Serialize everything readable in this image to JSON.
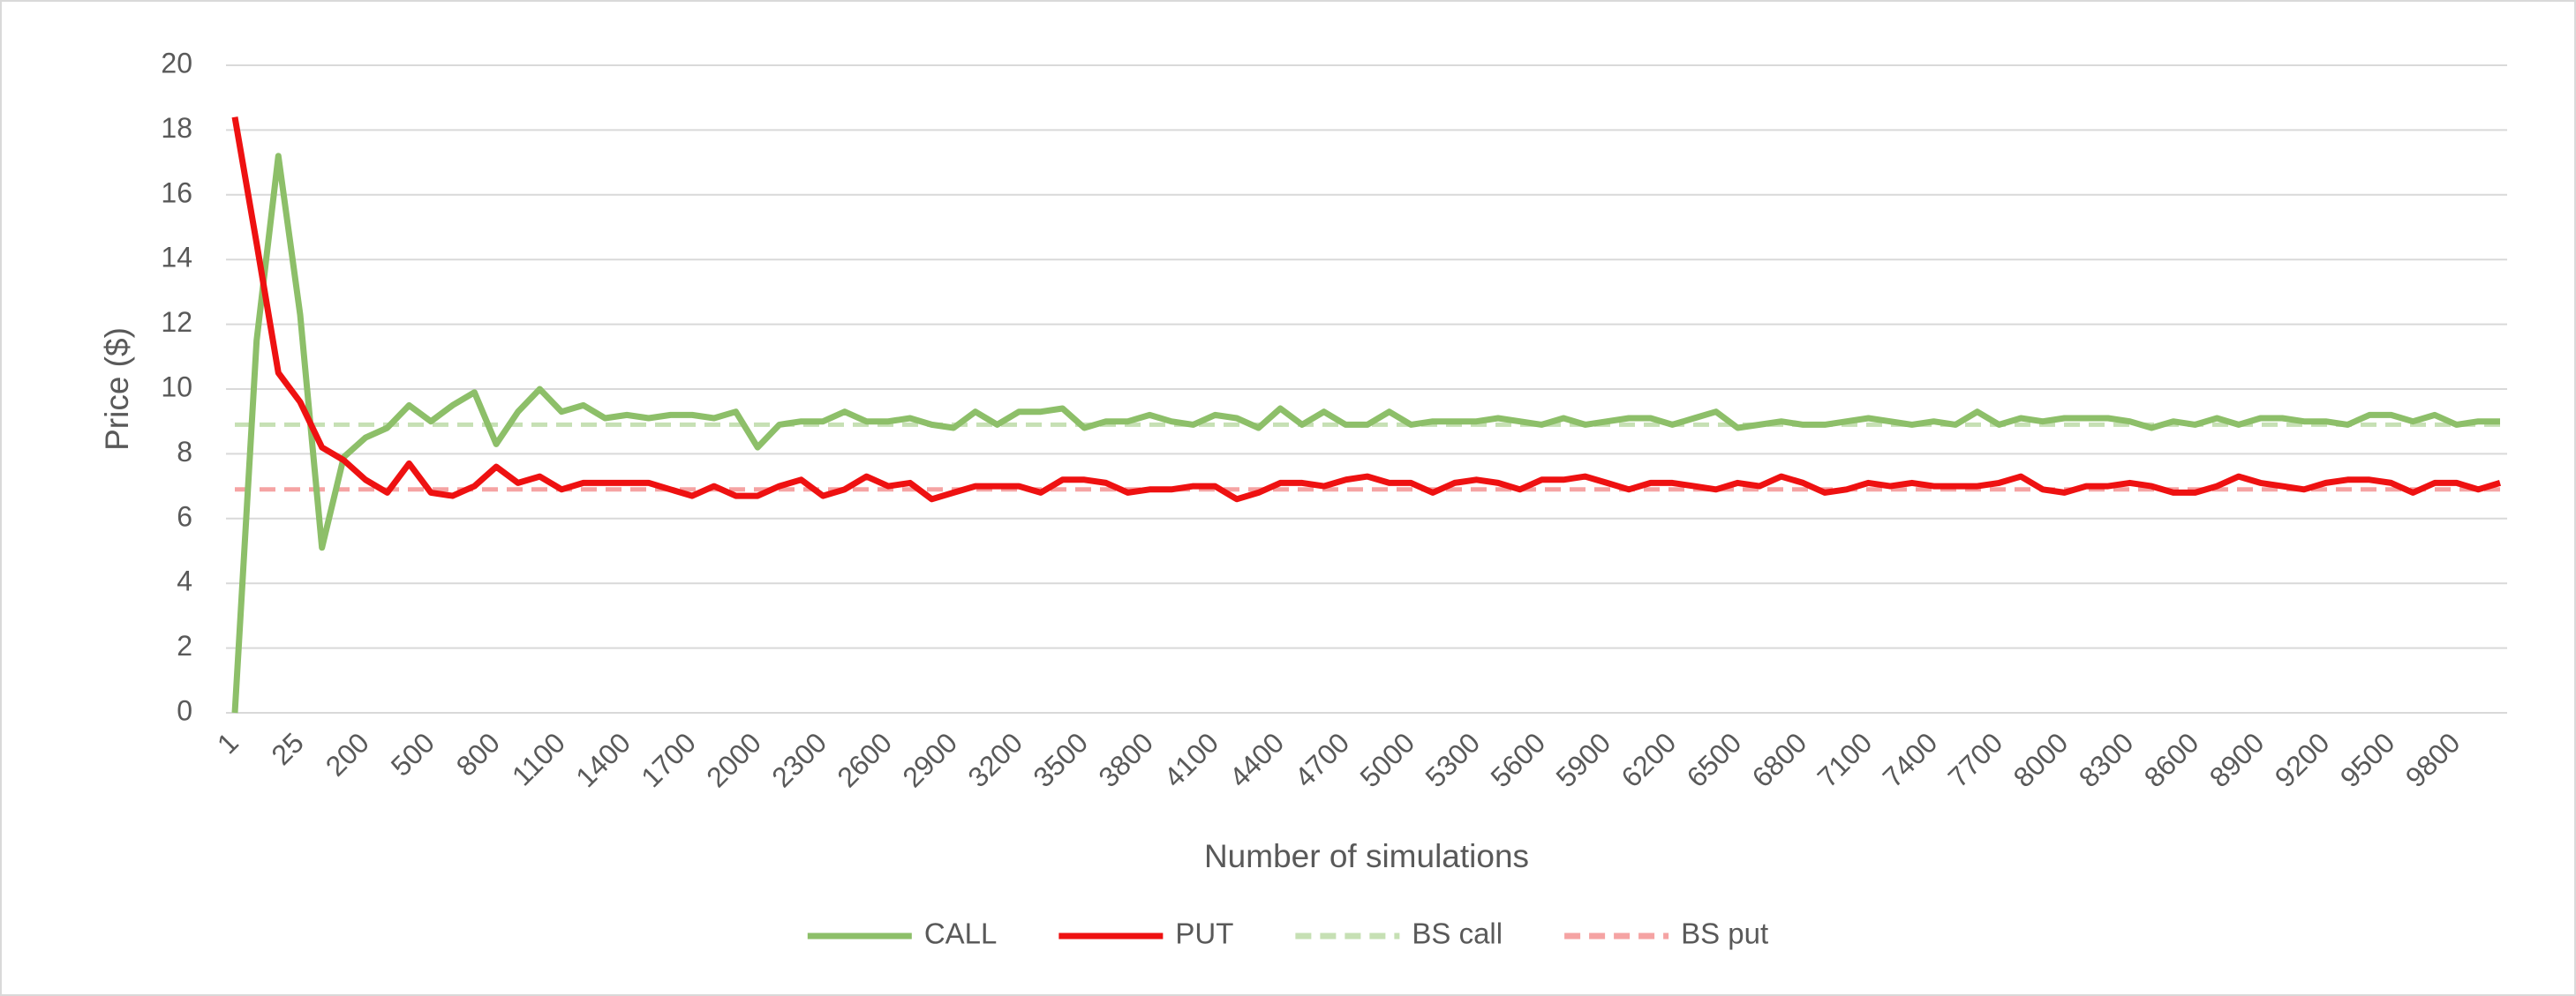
{
  "chart_data": {
    "type": "line",
    "xlabel": "Number of simulations",
    "ylabel": "Price ($)",
    "categories": [
      1,
      null,
      null,
      25,
      null,
      null,
      200,
      null,
      null,
      500,
      null,
      null,
      800,
      null,
      null,
      1100,
      null,
      null,
      1400,
      null,
      null,
      1700,
      null,
      null,
      2000,
      null,
      null,
      2300,
      null,
      null,
      2600,
      null,
      null,
      2900,
      null,
      null,
      3200,
      null,
      null,
      3500,
      null,
      null,
      3800,
      null,
      null,
      4100,
      null,
      null,
      4400,
      null,
      null,
      4700,
      null,
      null,
      5000,
      null,
      null,
      5300,
      null,
      null,
      5600,
      null,
      null,
      5900,
      null,
      null,
      6200,
      null,
      null,
      6500,
      null,
      null,
      6800,
      null,
      null,
      7100,
      null,
      null,
      7400,
      null,
      null,
      7700,
      null,
      null,
      8000,
      null,
      null,
      8300,
      null,
      null,
      8600,
      null,
      null,
      8900,
      null,
      null,
      9200,
      null,
      null,
      9500,
      null,
      null,
      9800,
      null,
      null
    ],
    "series": [
      {
        "name": "CALL",
        "color": "#8dbf69",
        "dashed": false,
        "values": [
          0,
          11.5,
          17.2,
          12.3,
          5.1,
          7.9,
          8.5,
          8.8,
          9.5,
          9.0,
          9.5,
          9.9,
          8.3,
          9.3,
          10.0,
          9.3,
          9.5,
          9.1,
          9.2,
          9.1,
          9.2,
          9.2,
          9.1,
          9.3,
          8.2,
          8.9,
          9.0,
          9.0,
          9.3,
          9.0,
          9.0,
          9.1,
          8.9,
          8.8,
          9.3,
          8.9,
          9.3,
          9.3,
          9.4,
          8.8,
          9.0,
          9.0,
          9.2,
          9.0,
          8.9,
          9.2,
          9.1,
          8.8,
          9.4,
          8.9,
          9.3,
          8.9,
          8.9,
          9.3,
          8.9,
          9.0,
          9.0,
          9.0,
          9.1,
          9.0,
          8.9,
          9.1,
          8.9,
          9.0,
          9.1,
          9.1,
          8.9,
          9.1,
          9.3,
          8.8,
          8.9,
          9.0,
          8.9,
          8.9,
          9.0,
          9.1,
          9.0,
          8.9,
          9.0,
          8.9,
          9.3,
          8.9,
          9.1,
          9.0,
          9.1,
          9.1,
          9.1,
          9.0,
          8.8,
          9.0,
          8.9,
          9.1,
          8.9,
          9.1,
          9.1,
          9.0,
          9.0,
          8.9,
          9.2,
          9.2,
          9.0,
          9.2,
          8.9,
          9.0,
          9.0
        ]
      },
      {
        "name": "PUT",
        "color": "#ee1111",
        "dashed": false,
        "values": [
          18.4,
          14.5,
          10.5,
          9.6,
          8.2,
          7.8,
          7.2,
          6.8,
          7.7,
          6.8,
          6.7,
          7.0,
          7.6,
          7.1,
          7.3,
          6.9,
          7.1,
          7.1,
          7.1,
          7.1,
          6.9,
          6.7,
          7.0,
          6.7,
          6.7,
          7.0,
          7.2,
          6.7,
          6.9,
          7.3,
          7.0,
          7.1,
          6.6,
          6.8,
          7.0,
          7.0,
          7.0,
          6.8,
          7.2,
          7.2,
          7.1,
          6.8,
          6.9,
          6.9,
          7.0,
          7.0,
          6.6,
          6.8,
          7.1,
          7.1,
          7.0,
          7.2,
          7.3,
          7.1,
          7.1,
          6.8,
          7.1,
          7.2,
          7.1,
          6.9,
          7.2,
          7.2,
          7.3,
          7.1,
          6.9,
          7.1,
          7.1,
          7.0,
          6.9,
          7.1,
          7.0,
          7.3,
          7.1,
          6.8,
          6.9,
          7.1,
          7.0,
          7.1,
          7.0,
          7.0,
          7.0,
          7.1,
          7.3,
          6.9,
          6.8,
          7.0,
          7.0,
          7.1,
          7.0,
          6.8,
          6.8,
          7.0,
          7.3,
          7.1,
          7.0,
          6.9,
          7.1,
          7.2,
          7.2,
          7.1,
          6.8,
          7.1,
          7.1,
          6.9,
          7.1
        ]
      },
      {
        "name": "BS call",
        "color": "#c6e0b4",
        "dashed": true,
        "value": 8.9
      },
      {
        "name": "BS put",
        "color": "#f5a3a3",
        "dashed": true,
        "value": 6.9
      }
    ],
    "ylim": [
      0,
      20
    ],
    "yticks": [
      0,
      2,
      4,
      6,
      8,
      10,
      12,
      14,
      16,
      18,
      20
    ],
    "grid": true,
    "legend": "bottom"
  }
}
